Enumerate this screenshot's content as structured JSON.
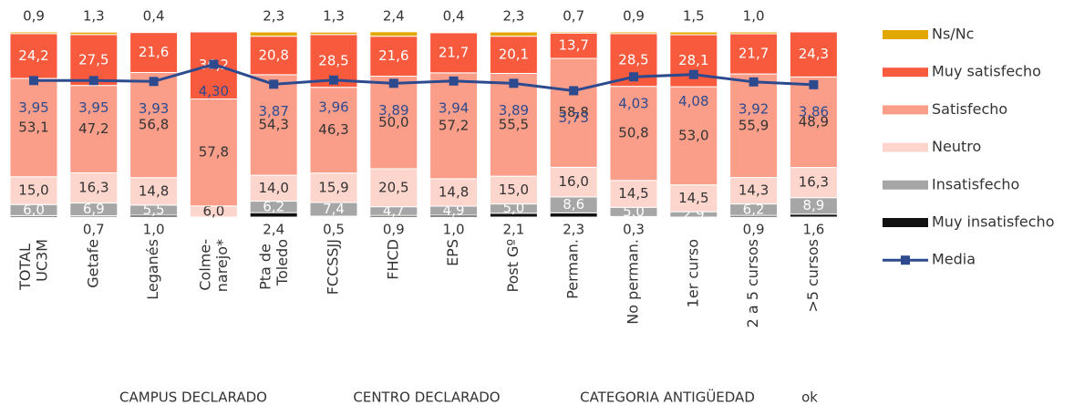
{
  "chart_data": {
    "type": "stacked-bar-line",
    "categories": [
      "TOTAL UC3M",
      "Getafe",
      "Leganés",
      "Colme-narejo*",
      "Pta de Toledo",
      "FCCSSJJ",
      "FHCD",
      "EPS",
      "Post Gº",
      "Perman.",
      "No perman.",
      "1er curso",
      "2 a 5 cursos",
      ">5 cursos"
    ],
    "groups": [
      "CAMPUS DECLARADO",
      "CENTRO DECLARADO",
      "CATEGORIA ANTIGÜEDAD",
      "ok"
    ],
    "ylim": [
      0,
      100
    ],
    "y2lim": [
      1,
      5
    ],
    "series": [
      {
        "name": "Ns/Nc",
        "color": "#e3a800",
        "values": [
          0.9,
          1.3,
          0.4,
          0,
          2.3,
          1.3,
          2.4,
          0.4,
          2.3,
          0.7,
          0.9,
          1.5,
          1.0,
          0
        ],
        "value_labels": [
          "0,9",
          "1,3",
          "0,4",
          null,
          "2,3",
          "1,3",
          "2,4",
          "0,4",
          "2,3",
          "0,7",
          "0,9",
          "1,5",
          "1,0",
          null
        ]
      },
      {
        "name": "Muy satisfecho",
        "color": "#f85a3e",
        "values": [
          24.2,
          27.5,
          21.6,
          36.2,
          20.8,
          28.5,
          21.6,
          21.7,
          20.1,
          13.7,
          28.5,
          28.1,
          21.7,
          24.3
        ],
        "value_labels": [
          "24,2",
          "27,5",
          "21,6",
          "36,2",
          "20,8",
          "28,5",
          "21,6",
          "21,7",
          "20,1",
          "13,7",
          "28,5",
          "28,1",
          "21,7",
          "24,3"
        ]
      },
      {
        "name": "Satisfecho",
        "color": "#fa9e8a",
        "values": [
          53.1,
          47.2,
          56.8,
          57.8,
          54.3,
          46.3,
          50.0,
          57.2,
          55.5,
          58.8,
          50.8,
          53.0,
          55.9,
          48.9
        ],
        "value_labels": [
          "53,1",
          "47,2",
          "56,8",
          "57,8",
          "54,3",
          "46,3",
          "50,0",
          "57,2",
          "55,5",
          "58,8",
          "50,8",
          "53,0",
          "55,9",
          "48,9"
        ]
      },
      {
        "name": "Neutro",
        "color": "#fcd5cc",
        "values": [
          15.0,
          16.3,
          14.8,
          6.0,
          14.0,
          15.9,
          20.5,
          14.8,
          15.0,
          16.0,
          14.5,
          14.5,
          14.3,
          16.3
        ],
        "value_labels": [
          "15,0",
          "16,3",
          "14,8",
          "6,0",
          "14,0",
          "15,9",
          "20,5",
          "14,8",
          "15,0",
          "16,0",
          "14,5",
          "14,5",
          "14,3",
          "16,3"
        ]
      },
      {
        "name": "Insatisfecho",
        "color": "#a6a6a6",
        "values": [
          6.0,
          6.9,
          5.5,
          0,
          6.2,
          7.4,
          4.7,
          4.9,
          5.0,
          8.6,
          5.0,
          2.9,
          6.2,
          8.9
        ],
        "value_labels": [
          "6,0",
          "6,9",
          "5,5",
          null,
          "6,2",
          "7,4",
          "4,7",
          "4,9",
          "5,0",
          "8,6",
          "5,0",
          "2,9",
          "6,2",
          "8,9"
        ]
      },
      {
        "name": "Muy insatisfecho",
        "color": "#111111",
        "values": [
          0.8,
          0.7,
          1.0,
          0,
          2.4,
          0.5,
          0.9,
          1.0,
          2.1,
          2.3,
          0.3,
          0,
          0.9,
          1.6
        ],
        "value_labels": [
          null,
          "0,7",
          "1,0",
          null,
          "2,4",
          "0,5",
          "0,9",
          "1,0",
          "2,1",
          "2,3",
          "0,3",
          null,
          "0,9",
          "1,6"
        ]
      },
      {
        "name": "Media",
        "color": "#2e4a8f",
        "axis": "y2",
        "type": "line",
        "values": [
          3.95,
          3.95,
          3.93,
          4.3,
          3.87,
          3.96,
          3.89,
          3.94,
          3.89,
          3.73,
          4.03,
          4.08,
          3.92,
          3.86
        ],
        "value_labels": [
          "3,95",
          "3,95",
          "3,93",
          "4,30",
          "3,87",
          "3,96",
          "3,89",
          "3,94",
          "3,89",
          "3,73",
          "4,03",
          "4,08",
          "3,92",
          "3,86"
        ]
      }
    ]
  }
}
